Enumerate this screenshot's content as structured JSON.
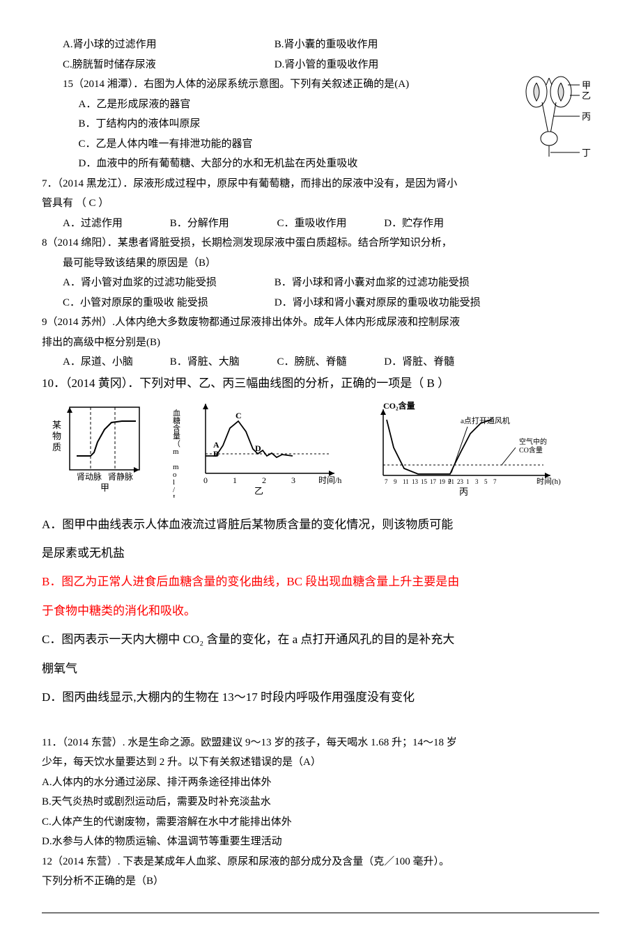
{
  "q14": {
    "opts": {
      "a": "A.肾小球的过滤作用",
      "b": "B.肾小囊的重吸收作用",
      "c": "C.膀胱暂时储存尿液",
      "d": "D.肾小管的重吸收作用"
    }
  },
  "q15": {
    "stem": "15（2014 湘潭）．右图为人体的泌尿系统示意图。下列有关叙述正确的是(A)",
    "a": "A．乙是形成尿液的器官",
    "b": "B．丁结构内的液体叫原尿",
    "c": "C．乙是人体内唯一有排泄功能的器官",
    "d": "D．血液中的所有葡萄糖、大部分的水和无机盐在丙处重吸收",
    "fig_labels": {
      "jia": "甲",
      "yi": "乙",
      "bing": "丙",
      "ding": "丁"
    }
  },
  "q7": {
    "stem_a": "7．（2014 黑龙江）．尿液形成过程中，原尿中有葡萄糖，而排出的尿液中没有，是因为肾小",
    "stem_b": "管具有  （ C   ）",
    "a": "A．过滤作用",
    "b": "B．分解作用",
    "c": "C．重吸收作用",
    "d": "D．贮存作用"
  },
  "q8": {
    "stem_a": "8（2014 绵阳）．某患者肾脏受损，长期检测发现尿液中蛋白质超标。结合所学知识分析，",
    "stem_b": "最可能导致该结果的原因是（B）",
    "a": "A．肾小管对血浆的过滤功能受损",
    "b": "B．肾小球和肾小囊对血浆的过滤功能受损",
    "c": "C．小管对原尿的重吸收  能受损",
    "d": "D．肾小球和肾小囊对原尿的重吸收功能受损"
  },
  "q9": {
    "stem_a": "9（2014 苏州）.人体内绝大多数废物都通过尿液排出体外。成年人体内形成尿液和控制尿液",
    "stem_b": "排出的高级中枢分别是(B)",
    "a": "A．尿道、小脑",
    "b": "B．肾脏、大脑",
    "c": "C．膀胱、脊髓",
    "d": "D．肾脏、脊髓"
  },
  "q10": {
    "stem": "10．（2014 黄冈）．下列对甲、乙、丙三幅曲线图的分析，正确的一项是（  B  ）",
    "chart_jia": {
      "type": "line",
      "ylabel": "某\n物\n质",
      "xticks": [
        "肾动脉",
        "肾静脉"
      ],
      "caption": "甲",
      "curve": [
        [
          10,
          70
        ],
        [
          30,
          70
        ],
        [
          35,
          65
        ],
        [
          40,
          50
        ],
        [
          50,
          32
        ],
        [
          60,
          22
        ],
        [
          75,
          20
        ],
        [
          95,
          20
        ]
      ],
      "vdash_x": [
        30,
        65
      ],
      "line_color": "#000000",
      "bg": "#ffffff"
    },
    "chart_yi": {
      "type": "line",
      "ylabel": "血糖含量（m mol/L）",
      "xlabel": "时间/h",
      "xticks": [
        "0",
        "1",
        "2",
        "3"
      ],
      "pts": {
        "A": [
          15,
          62
        ],
        "B": [
          15,
          75
        ],
        "C": [
          47,
          20
        ],
        "D": [
          75,
          67
        ]
      },
      "caption": "乙",
      "curve": [
        [
          0,
          70
        ],
        [
          15,
          70
        ],
        [
          25,
          55
        ],
        [
          35,
          30
        ],
        [
          47,
          20
        ],
        [
          58,
          35
        ],
        [
          68,
          60
        ],
        [
          75,
          67
        ],
        [
          82,
          62
        ],
        [
          88,
          70
        ],
        [
          95,
          66
        ],
        [
          102,
          72
        ],
        [
          110,
          68
        ],
        [
          125,
          70
        ]
      ],
      "dash_y": 67,
      "line_color": "#000000"
    },
    "chart_bing": {
      "type": "line",
      "title": "CO₂含量",
      "annot": "a点打开通风机",
      "annot2": "空气中的\nCO含量",
      "xlabel": "时间(h)",
      "xticks": [
        "7",
        "9",
        "11",
        "13",
        "15",
        "17",
        "19",
        "21",
        "23",
        "1",
        "3",
        "5",
        "7"
      ],
      "pt": {
        "a": [
          96,
          88
        ]
      },
      "caption": "丙",
      "curve": [
        [
          5,
          10
        ],
        [
          15,
          50
        ],
        [
          30,
          80
        ],
        [
          50,
          88
        ],
        [
          70,
          88
        ],
        [
          90,
          88
        ],
        [
          96,
          88
        ],
        [
          102,
          75
        ],
        [
          112,
          55
        ],
        [
          125,
          30
        ],
        [
          140,
          15
        ],
        [
          155,
          10
        ]
      ],
      "dash_y": 75,
      "line_color": "#000000"
    },
    "opts": {
      "a1": "A．图甲中曲线表示人体血液流过肾脏后某物质含量的变化情况，则该物质可能",
      "a2": "是尿素或无机盐",
      "b1": "B．图乙为正常人进食后血糖含量的变化曲线，BC 段出现血糖含量上升主要是由",
      "b2": "于食物中糖类的消化和吸收。",
      "c1": "C．图丙表示一天内大棚中 CO₂ 含量的变化，在 a 点打开通风孔的目的是补充大",
      "c2": "棚氧气",
      "d": "D．图丙曲线显示,大棚内的生物在 13～17 时段内呼吸作用强度没有变化"
    }
  },
  "q11": {
    "stem_a": "11．（2014 东营）. 水是生命之源。欧盟建议 9～13 岁的孩子，每天喝水 1.68 升；14～18 岁",
    "stem_b": "少年，每天饮水量要达到 2 升。以下有关叙述错误的是（A）",
    "a": "A.人体内的水分通过泌尿、排汗两条途径排出体外",
    "b": "B.天气炎热时或剧烈运动后，需要及时补充淡盐水",
    "c": "C.人体产生的代谢废物，需要溶解在水中才能排出体外",
    "d": "D.水参与人体的物质运输、体温调节等重要生理活动"
  },
  "q12": {
    "stem_a": "12（2014 东营）. 下表是某成年人血浆、原尿和尿液的部分成分及含量（克／100 毫升）。",
    "stem_b": "下列分析不正确的是（B）"
  },
  "style": {
    "text_color": "#000000",
    "highlight_color": "#ff0000",
    "rule_color": "#000000"
  }
}
